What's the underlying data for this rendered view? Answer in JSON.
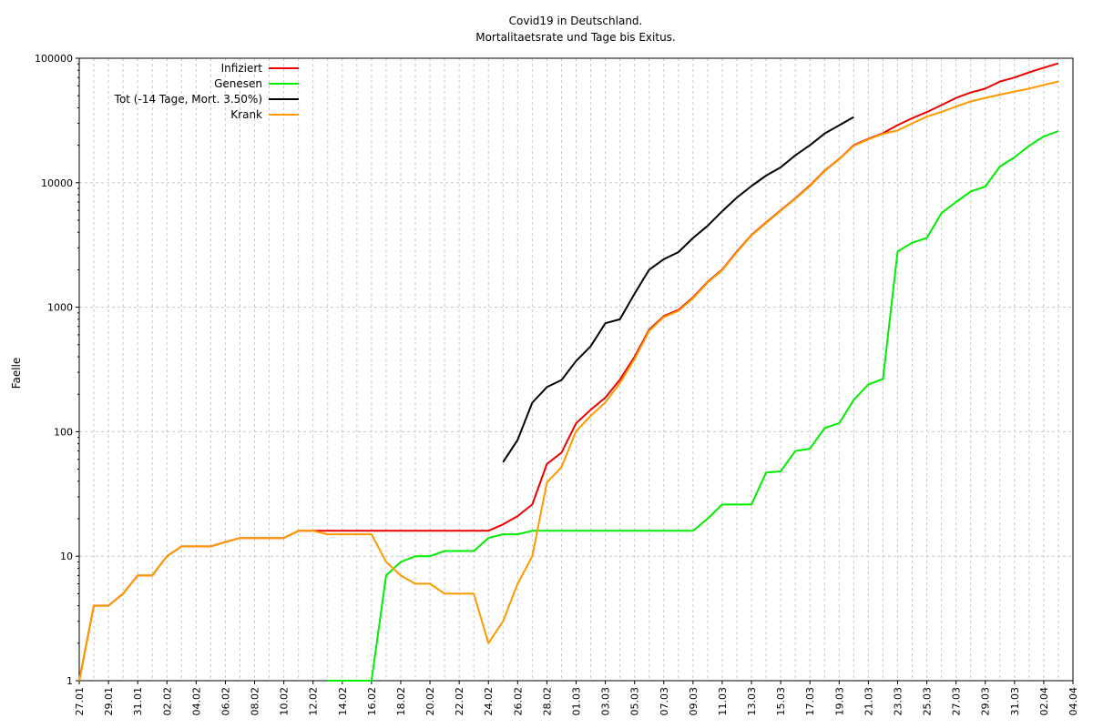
{
  "chart_data": {
    "type": "line",
    "title": "Covid19 in Deutschland.",
    "subtitle": "Mortalitaetsrate und Tage bis Exitus.",
    "xlabel": "",
    "ylabel": "Faelle",
    "yscale": "log",
    "ylim": [
      1,
      100000
    ],
    "yticks": [
      "1",
      "10",
      "100",
      "1000",
      "10000",
      "100000"
    ],
    "grid": true,
    "legend_position": "top-left",
    "x_start": "27.01",
    "x_end": "04.04",
    "xticks": [
      "27.01",
      "29.01",
      "31.01",
      "02.02",
      "04.02",
      "06.02",
      "08.02",
      "10.02",
      "12.02",
      "14.02",
      "16.02",
      "18.02",
      "20.02",
      "22.02",
      "24.02",
      "26.02",
      "28.02",
      "01.03",
      "03.03",
      "05.03",
      "07.03",
      "09.03",
      "11.03",
      "13.03",
      "15.03",
      "17.03",
      "19.03",
      "21.03",
      "23.03",
      "25.03",
      "27.03",
      "29.03",
      "31.03",
      "02.04",
      "04.04"
    ],
    "series": [
      {
        "name": "Infiziert",
        "color": "#ee0000",
        "x": [
          "27.01",
          "28.01",
          "29.01",
          "30.01",
          "31.01",
          "01.02",
          "02.02",
          "03.02",
          "04.02",
          "05.02",
          "06.02",
          "07.02",
          "08.02",
          "09.02",
          "10.02",
          "11.02",
          "12.02",
          "13.02",
          "14.02",
          "15.02",
          "16.02",
          "17.02",
          "18.02",
          "19.02",
          "20.02",
          "21.02",
          "22.02",
          "23.02",
          "24.02",
          "25.02",
          "26.02",
          "27.02",
          "28.02",
          "29.02",
          "01.03",
          "02.03",
          "03.03",
          "04.03",
          "05.03",
          "06.03",
          "07.03",
          "08.03",
          "09.03",
          "10.03",
          "11.03",
          "12.03",
          "13.03",
          "14.03",
          "15.03",
          "16.03",
          "17.03",
          "18.03",
          "19.03",
          "20.03",
          "21.03",
          "22.03",
          "23.03",
          "24.03",
          "25.03",
          "26.03",
          "27.03",
          "28.03",
          "29.03",
          "30.03",
          "31.03",
          "01.04",
          "02.04",
          "03.04"
        ],
        "y": [
          1,
          4,
          4,
          5,
          7,
          7,
          10,
          12,
          12,
          12,
          13,
          14,
          14,
          14,
          14,
          16,
          16,
          16,
          16,
          16,
          16,
          16,
          16,
          16,
          16,
          16,
          16,
          16,
          16,
          18,
          21,
          26,
          55,
          68,
          117,
          150,
          188,
          262,
          400,
          660,
          850,
          950,
          1200,
          1600,
          2000,
          2800,
          3800,
          4800,
          6000,
          7500,
          9500,
          12500,
          15500,
          20000,
          22500,
          25000,
          29000,
          33000,
          37000,
          42000,
          48000,
          53000,
          57000,
          65000,
          70000,
          77000,
          84000,
          91000
        ]
      },
      {
        "name": "Genesen",
        "color": "#00ee00",
        "x": [
          "13.02",
          "14.02",
          "15.02",
          "16.02",
          "17.02",
          "18.02",
          "19.02",
          "20.02",
          "21.02",
          "22.02",
          "23.02",
          "24.02",
          "25.02",
          "26.02",
          "27.02",
          "28.02",
          "29.02",
          "01.03",
          "02.03",
          "03.03",
          "04.03",
          "05.03",
          "06.03",
          "07.03",
          "08.03",
          "09.03",
          "10.03",
          "11.03",
          "12.03",
          "13.03",
          "14.03",
          "15.03",
          "16.03",
          "17.03",
          "18.03",
          "19.03",
          "20.03",
          "21.03",
          "22.03",
          "23.03",
          "24.03",
          "25.03",
          "26.03",
          "27.03",
          "28.03",
          "29.03",
          "30.03",
          "31.03",
          "01.04",
          "02.04",
          "03.04"
        ],
        "y": [
          1,
          1,
          1,
          1,
          7,
          9,
          10,
          10,
          11,
          11,
          11,
          14,
          15,
          15,
          16,
          16,
          16,
          16,
          16,
          16,
          16,
          16,
          16,
          16,
          16,
          16,
          20,
          26,
          26,
          26,
          47,
          48,
          70,
          73,
          107,
          117,
          180,
          240,
          265,
          2800,
          3300,
          3600,
          5700,
          7000,
          8500,
          9300,
          13500,
          16000,
          19800,
          23500,
          26000
        ]
      },
      {
        "name": "Tot (-14 Tage, Mort. 3.50%)",
        "color": "#000000",
        "x": [
          "25.02",
          "26.02",
          "27.02",
          "28.02",
          "29.02",
          "01.03",
          "02.03",
          "03.03",
          "04.03",
          "05.03",
          "06.03",
          "07.03",
          "08.03",
          "09.03",
          "10.03",
          "11.03",
          "12.03",
          "13.03",
          "14.03",
          "15.03",
          "16.03",
          "17.03",
          "18.03",
          "19.03",
          "20.03"
        ],
        "y": [
          57,
          86,
          171,
          228,
          260,
          370,
          486,
          743,
          800,
          1286,
          2000,
          2430,
          2770,
          3600,
          4500,
          5900,
          7600,
          9400,
          11400,
          13300,
          16600,
          20000,
          24800,
          28900,
          33700
        ]
      },
      {
        "name": "Krank",
        "color": "#ff9900",
        "x": [
          "27.01",
          "28.01",
          "29.01",
          "30.01",
          "31.01",
          "01.02",
          "02.02",
          "03.02",
          "04.02",
          "05.02",
          "06.02",
          "07.02",
          "08.02",
          "09.02",
          "10.02",
          "11.02",
          "12.02",
          "13.02",
          "14.02",
          "15.02",
          "16.02",
          "17.02",
          "18.02",
          "19.02",
          "20.02",
          "21.02",
          "22.02",
          "23.02",
          "24.02",
          "25.02",
          "26.02",
          "27.02",
          "28.02",
          "29.02",
          "01.03",
          "02.03",
          "03.03",
          "04.03",
          "05.03",
          "06.03",
          "07.03",
          "08.03",
          "09.03",
          "10.03",
          "11.03",
          "12.03",
          "13.03",
          "14.03",
          "15.03",
          "16.03",
          "17.03",
          "18.03",
          "19.03",
          "20.03",
          "21.03",
          "22.03",
          "23.03",
          "24.03",
          "25.03",
          "26.03",
          "27.03",
          "28.03",
          "29.03",
          "30.03",
          "31.03",
          "01.04",
          "02.04",
          "03.04"
        ],
        "y": [
          1,
          4,
          4,
          5,
          7,
          7,
          10,
          12,
          12,
          12,
          13,
          14,
          14,
          14,
          14,
          16,
          16,
          15,
          15,
          15,
          15,
          9,
          7,
          6,
          6,
          5,
          5,
          5,
          2,
          3,
          6,
          10,
          39,
          52,
          101,
          134,
          172,
          246,
          384,
          644,
          834,
          934,
          1180,
          1580,
          1980,
          2770,
          3770,
          4750,
          5950,
          7430,
          9400,
          12400,
          15400,
          19800,
          22300,
          24700,
          26300,
          30000,
          34000,
          37000,
          41000,
          45000,
          48000,
          51000,
          54000,
          57000,
          61000,
          65000
        ]
      }
    ]
  }
}
